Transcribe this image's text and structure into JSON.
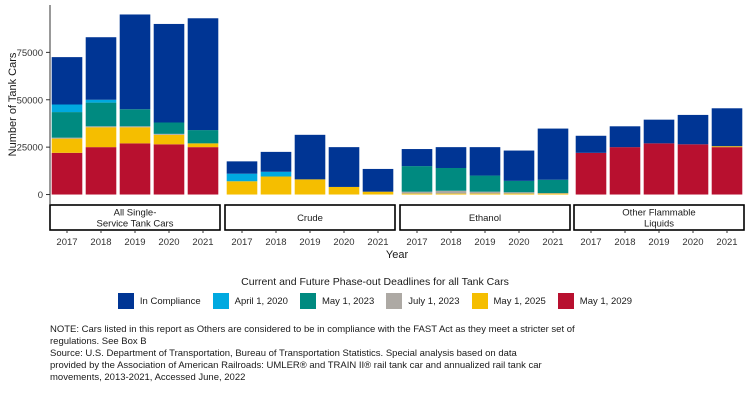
{
  "chart_data": {
    "type": "bar",
    "stacked": true,
    "panels": [
      {
        "label_lines": [
          "All Single-",
          "Service Tank Cars"
        ]
      },
      {
        "label_lines": [
          "Crude"
        ]
      },
      {
        "label_lines": [
          "Ethanol"
        ]
      },
      {
        "label_lines": [
          "Other Flammable",
          "Liquids"
        ]
      }
    ],
    "categories": [
      "2017",
      "2018",
      "2019",
      "2020",
      "2021"
    ],
    "xlabel": "Year",
    "ylabel": "Number of Tank Cars",
    "ylim": [
      -5000,
      100000
    ],
    "yticks": [
      0,
      25000,
      50000,
      75000
    ],
    "ytick_labels": [
      "0",
      "25000",
      "50000",
      "75000"
    ],
    "legend_title": "Current and Future Phase-out Deadlines for all Tank Cars",
    "legend_position": "bottom",
    "series": [
      {
        "name": "May 1, 2029",
        "color": "#B8102F",
        "values": [
          [
            22000,
            25000,
            27000,
            26500,
            25000
          ],
          [
            0,
            0,
            0,
            0,
            0
          ],
          [
            0,
            0,
            0,
            0,
            0
          ],
          [
            22000,
            25000,
            27000,
            26500,
            25000
          ]
        ]
      },
      {
        "name": "May 1, 2025",
        "color": "#F5BE00",
        "values": [
          [
            7500,
            10500,
            8500,
            5000,
            2000
          ],
          [
            7000,
            9500,
            8000,
            4000,
            1500
          ],
          [
            500,
            500,
            500,
            500,
            500
          ],
          [
            0,
            0,
            0,
            0,
            500
          ]
        ]
      },
      {
        "name": "July 1, 2023",
        "color": "#ADA9A4",
        "values": [
          [
            500,
            500,
            500,
            500,
            0
          ],
          [
            0,
            0,
            0,
            0,
            0
          ],
          [
            1000,
            1500,
            1000,
            700,
            300
          ],
          [
            0,
            0,
            0,
            0,
            0
          ]
        ]
      },
      {
        "name": "May 1, 2023",
        "color": "#008A80",
        "values": [
          [
            13500,
            12500,
            9000,
            6000,
            7000
          ],
          [
            0,
            0,
            0,
            0,
            0
          ],
          [
            13500,
            12000,
            8500,
            6000,
            7000
          ],
          [
            0,
            0,
            0,
            0,
            0
          ]
        ]
      },
      {
        "name": "April 1, 2020",
        "color": "#00A9E0",
        "values": [
          [
            4000,
            1500,
            0,
            0,
            0
          ],
          [
            4000,
            2500,
            0,
            0,
            0
          ],
          [
            0,
            0,
            0,
            0,
            0
          ],
          [
            0,
            0,
            0,
            0,
            0
          ]
        ]
      },
      {
        "name": "In Compliance",
        "color": "#003594",
        "values": [
          [
            25000,
            33000,
            50000,
            52000,
            59000
          ],
          [
            6500,
            10500,
            23500,
            21000,
            12000
          ],
          [
            9000,
            11000,
            15000,
            16000,
            27000
          ],
          [
            9000,
            11000,
            12500,
            15500,
            20000
          ]
        ]
      }
    ]
  },
  "legend_order": [
    "In Compliance",
    "April 1, 2020",
    "May 1, 2023",
    "July 1, 2023",
    "May 1, 2025",
    "May 1, 2029"
  ],
  "note": {
    "line1": "NOTE: Cars listed in this report as Others are considered to be in compliance with the FAST Act as they meet a stricter set of",
    "line2": "regulations. See Box B",
    "line3": "Source: U.S. Department of Transportation, Bureau of Transportation Statistics. Special analysis based on data",
    "line4": "provided by the Association of American Railroads: UMLER® and TRAIN II® rail tank car and annualized rail tank car",
    "line5": "movements, 2013-2021, Accessed June, 2022"
  }
}
